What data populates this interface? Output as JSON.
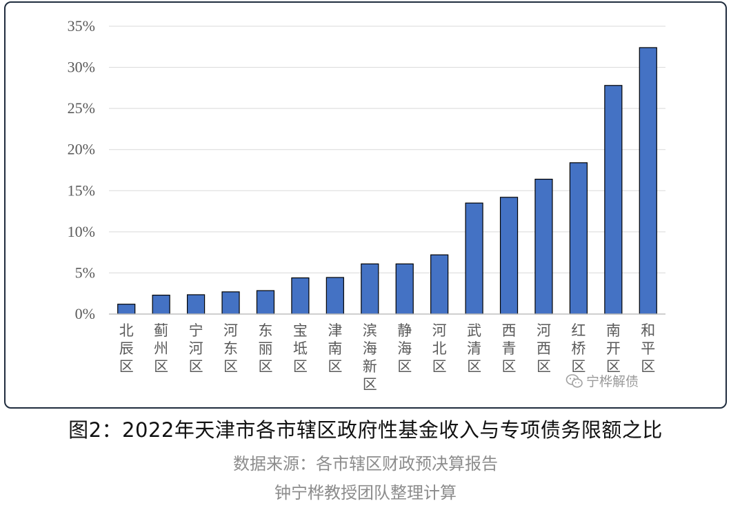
{
  "chart_data": {
    "type": "bar",
    "title": "",
    "xlabel": "",
    "ylabel": "",
    "ylim": [
      0,
      35
    ],
    "yticks": [
      "0%",
      "5%",
      "10%",
      "15%",
      "20%",
      "25%",
      "30%",
      "35%"
    ],
    "grid": true,
    "legend": "none",
    "bar_color": "#4472C4",
    "categories": [
      "北辰区",
      "蓟州区",
      "宁河区",
      "河东区",
      "东丽区",
      "宝坻区",
      "津南区",
      "滨海新区",
      "静海区",
      "河北区",
      "武清区",
      "西青区",
      "河西区",
      "红桥区",
      "南开区",
      "和平区"
    ],
    "values": [
      1.2,
      2.3,
      2.35,
      2.7,
      2.85,
      4.4,
      4.45,
      6.1,
      6.1,
      7.2,
      13.5,
      14.2,
      16.4,
      18.4,
      27.8,
      32.4
    ]
  },
  "watermark": {
    "icon": "wechat-icon",
    "text": "宁桦解债"
  },
  "caption": {
    "title": "图2：2022年天津市各市辖区政府性基金收入与专项债务限额之比",
    "source": "数据来源：各市辖区财政预决算报告",
    "author": "钟宁桦教授团队整理计算"
  }
}
